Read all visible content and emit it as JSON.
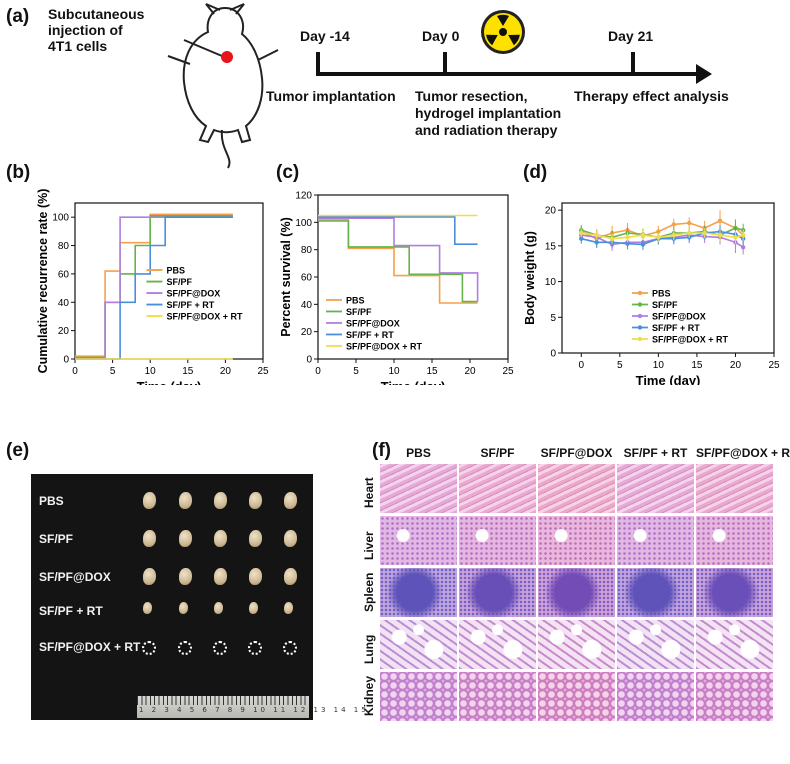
{
  "panel_labels": {
    "a": "(a)",
    "b": "(b)",
    "c": "(c)",
    "d": "(d)",
    "e": "(e)",
    "f": "(f)"
  },
  "schematic": {
    "injection_label": [
      "Subcutaneous",
      "injection of",
      "4T1 cells"
    ],
    "days": [
      "Day -14",
      "Day 0",
      "Day 21"
    ],
    "events": {
      "implant": "Tumor implantation",
      "resection": [
        "Tumor resection,",
        "hydrogel implantation",
        "and radiation therapy"
      ],
      "analysis": "Therapy effect analysis"
    },
    "colors": {
      "tumor_dot": "#e8141b",
      "radiation_yellow": "#ffe100"
    }
  },
  "legend_groups": [
    "PBS",
    "SF/PF",
    "SF/PF@DOX",
    "SF/PF + RT",
    "SF/PF@DOX + RT"
  ],
  "series_colors": [
    "#f5a04a",
    "#64b449",
    "#b07ee0",
    "#4a8fdc",
    "#f1dc4e"
  ],
  "chart_data": [
    {
      "type": "line",
      "panel": "b",
      "xlabel": "Time (day)",
      "ylabel": "Cumulative recurrence rate (%)",
      "xlim": [
        0,
        25
      ],
      "ylim": [
        0,
        110
      ],
      "xticks": [
        0,
        5,
        10,
        15,
        20,
        25
      ],
      "yticks": [
        0,
        20,
        40,
        60,
        80,
        100
      ],
      "step": true,
      "legend": "center-right",
      "series": [
        {
          "name": "PBS",
          "x": [
            0,
            4,
            4,
            6,
            6,
            10,
            10,
            21
          ],
          "y": [
            2,
            2,
            62,
            62,
            82,
            82,
            102,
            102
          ]
        },
        {
          "name": "SF/PF",
          "x": [
            0,
            4,
            4,
            6,
            6,
            8,
            8,
            10,
            10,
            21
          ],
          "y": [
            1,
            1,
            40,
            40,
            60,
            60,
            80,
            80,
            101,
            101
          ]
        },
        {
          "name": "SF/PF@DOX",
          "x": [
            0,
            4,
            4,
            6,
            6,
            21
          ],
          "y": [
            0,
            0,
            40,
            40,
            100,
            100
          ]
        },
        {
          "name": "SF/PF + RT",
          "x": [
            0,
            6,
            6,
            8,
            8,
            10,
            10,
            12,
            12,
            21
          ],
          "y": [
            0,
            0,
            40,
            40,
            60,
            60,
            80,
            80,
            100,
            100
          ]
        },
        {
          "name": "SF/PF@DOX + RT",
          "x": [
            0,
            21
          ],
          "y": [
            0,
            0
          ]
        }
      ]
    },
    {
      "type": "line",
      "panel": "c",
      "xlabel": "Time (day)",
      "ylabel": "Percent survival (%)",
      "xlim": [
        0,
        25
      ],
      "ylim": [
        0,
        120
      ],
      "xticks": [
        0,
        5,
        10,
        15,
        20,
        25
      ],
      "yticks": [
        0,
        20,
        40,
        60,
        80,
        100,
        120
      ],
      "step": true,
      "legend": "lower-left",
      "series": [
        {
          "name": "PBS",
          "x": [
            0,
            4,
            4,
            10,
            10,
            16,
            16,
            21
          ],
          "y": [
            102,
            102,
            81,
            81,
            61,
            61,
            41,
            41
          ]
        },
        {
          "name": "SF/PF",
          "x": [
            0,
            4,
            4,
            12,
            12,
            19,
            19,
            21
          ],
          "y": [
            101,
            101,
            82,
            82,
            62,
            62,
            42,
            42
          ]
        },
        {
          "name": "SF/PF@DOX",
          "x": [
            0,
            10,
            10,
            16,
            16,
            21,
            21
          ],
          "y": [
            103,
            103,
            83,
            83,
            63,
            63,
            42
          ]
        },
        {
          "name": "SF/PF + RT",
          "x": [
            0,
            18,
            18,
            21
          ],
          "y": [
            104,
            104,
            84,
            84
          ]
        },
        {
          "name": "SF/PF@DOX + RT",
          "x": [
            0,
            21
          ],
          "y": [
            105,
            105
          ]
        }
      ]
    },
    {
      "type": "line",
      "panel": "d",
      "xlabel": "Time (day)",
      "ylabel": "Body weight (g)",
      "xlim": [
        -2.5,
        25
      ],
      "ylim": [
        0,
        21
      ],
      "xticks": [
        0,
        5,
        10,
        15,
        20,
        25
      ],
      "yticks": [
        0,
        5,
        10,
        15,
        20
      ],
      "markers": true,
      "error_bars": true,
      "legend": "lower-center",
      "x": [
        0,
        2,
        4,
        6,
        8,
        10,
        12,
        14,
        16,
        18,
        20,
        21
      ],
      "series": [
        {
          "name": "PBS",
          "values": [
            17.0,
            16.0,
            16.8,
            17.2,
            16.4,
            17.0,
            18.0,
            18.2,
            17.5,
            18.5,
            17.5,
            16.5
          ],
          "errors": [
            0.8,
            1.2,
            1.0,
            1.0,
            1.0,
            0.8,
            0.8,
            0.8,
            1.0,
            1.5,
            1.0,
            1.0
          ]
        },
        {
          "name": "SF/PF",
          "values": [
            17.2,
            16.5,
            16.2,
            16.8,
            16.6,
            16.2,
            16.8,
            16.8,
            17.0,
            16.5,
            17.5,
            17.2
          ],
          "errors": [
            0.7,
            0.8,
            0.9,
            0.8,
            0.8,
            0.8,
            0.8,
            0.7,
            0.8,
            0.9,
            1.2,
            0.9
          ]
        },
        {
          "name": "SF/PF@DOX",
          "values": [
            16.5,
            16.2,
            15.2,
            15.5,
            15.5,
            16.0,
            16.2,
            16.5,
            16.3,
            16.2,
            15.5,
            14.8
          ],
          "errors": [
            0.8,
            1.0,
            0.9,
            0.9,
            0.9,
            0.8,
            0.8,
            0.8,
            0.9,
            1.0,
            1.5,
            1.0
          ]
        },
        {
          "name": "SF/PF + RT",
          "values": [
            16.0,
            15.5,
            15.5,
            15.3,
            15.2,
            16.0,
            16.0,
            16.2,
            16.8,
            17.0,
            16.6,
            16.0
          ],
          "errors": [
            0.7,
            0.8,
            0.8,
            0.8,
            0.8,
            0.8,
            0.8,
            0.8,
            0.9,
            0.9,
            1.0,
            0.9
          ]
        },
        {
          "name": "SF/PF@DOX + RT",
          "values": [
            16.8,
            16.5,
            16.0,
            16.2,
            16.5,
            16.2,
            16.5,
            16.8,
            16.8,
            16.5,
            16.2,
            16.5
          ],
          "errors": [
            0.6,
            0.7,
            0.7,
            0.7,
            0.7,
            0.7,
            0.7,
            0.7,
            0.7,
            0.8,
            0.9,
            0.8
          ]
        }
      ]
    }
  ],
  "photo": {
    "row_labels": [
      "PBS",
      "SF/PF",
      "SF/PF@DOX",
      "SF/PF + RT",
      "SF/PF@DOX + RT"
    ],
    "tumors_per_row": 5,
    "ruler_numbers": "1 2 3 4 5 6 7 8 9 10 11 12 13 14 15"
  },
  "histology": {
    "columns": [
      "PBS",
      "SF/PF",
      "SF/PF@DOX",
      "SF/PF + RT",
      "SF/PF@DOX + RT"
    ],
    "rows": [
      "Heart",
      "Liver",
      "Spleen",
      "Lung",
      "Kidney"
    ]
  }
}
